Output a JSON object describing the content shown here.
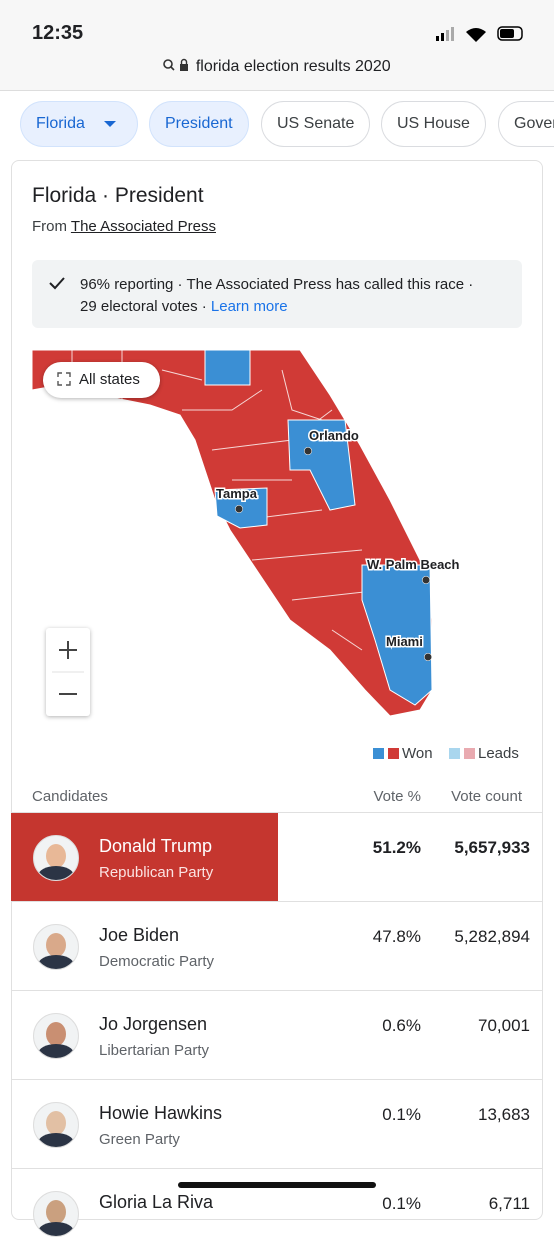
{
  "status_bar": {
    "time": "12:35"
  },
  "address_bar": {
    "query": "florida election results 2020"
  },
  "tabs": [
    "Florida",
    "President",
    "US Senate",
    "US House",
    "Gover"
  ],
  "card": {
    "title": "Florida · President",
    "source_prefix": "From",
    "source": "The Associated Press",
    "notice": {
      "lines": [
        "96% reporting · The Associated Press has called this race ·",
        "29 electoral votes ·"
      ],
      "link": "Learn more"
    }
  },
  "map": {
    "all_states": "All states",
    "cities": [
      "Orlando",
      "Tampa",
      "W. Palm Beach",
      "Miami"
    ],
    "legend": [
      "Won",
      "Leads"
    ]
  },
  "table": {
    "headers": [
      "Candidates",
      "Vote %",
      "Vote count"
    ],
    "rows": [
      {
        "name": "Donald Trump",
        "party": "Republican Party",
        "vote_pct": "51.2%",
        "vote_count": "5,657,933"
      },
      {
        "name": "Joe Biden",
        "party": "Democratic Party",
        "vote_pct": "47.8%",
        "vote_count": "5,282,894"
      },
      {
        "name": "Jo Jorgensen",
        "party": "Libertarian Party",
        "vote_pct": "0.6%",
        "vote_count": "70,001"
      },
      {
        "name": "Howie Hawkins",
        "party": "Green Party",
        "vote_pct": "0.1%",
        "vote_count": "13,683"
      },
      {
        "name": "Gloria La Riva",
        "party": "",
        "vote_pct": "0.1%",
        "vote_count": "6,711"
      }
    ]
  }
}
